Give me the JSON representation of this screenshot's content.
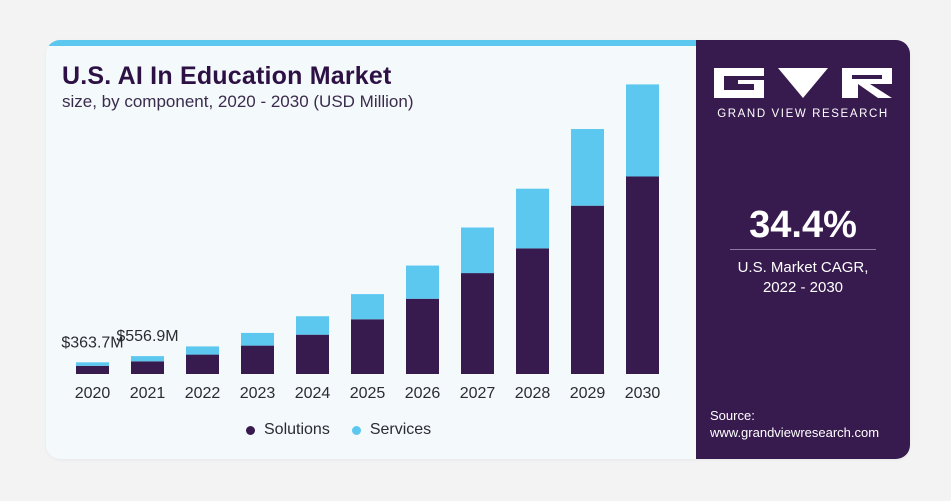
{
  "title": "U.S. AI In Education Market",
  "subtitle": "size, by component, 2020 - 2030 (USD Million)",
  "colors": {
    "solutions": "#371a4e",
    "services": "#5cc8f0",
    "accent": "#5cc8f0",
    "panel": "#371a4e"
  },
  "chart_data": {
    "type": "bar",
    "stacked": true,
    "categories": [
      "2020",
      "2021",
      "2022",
      "2023",
      "2024",
      "2025",
      "2026",
      "2027",
      "2028",
      "2029",
      "2030"
    ],
    "series": [
      {
        "name": "Solutions",
        "values": [
          255,
          395,
          605,
          885,
          1225,
          1705,
          2345,
          3145,
          3915,
          5245,
          6155
        ]
      },
      {
        "name": "Services",
        "values": [
          109,
          162,
          255,
          395,
          575,
          785,
          1035,
          1420,
          1860,
          2390,
          2870
        ]
      }
    ],
    "annotations": [
      {
        "category": "2020",
        "text": "$363.7M"
      },
      {
        "category": "2021",
        "text": "$556.9M"
      }
    ],
    "ylim": [
      0,
      9100
    ],
    "grid": false,
    "legend_position": "bottom"
  },
  "legend": [
    {
      "label": "Solutions",
      "color": "#371a4e"
    },
    {
      "label": "Services",
      "color": "#5cc8f0"
    }
  ],
  "side_panel": {
    "brand": "GRAND VIEW RESEARCH",
    "cagr_value": "34.4%",
    "cagr_label_line1": "U.S. Market CAGR,",
    "cagr_label_line2": "2022 - 2030",
    "source_label": "Source:",
    "source_url": "www.grandviewresearch.com"
  }
}
